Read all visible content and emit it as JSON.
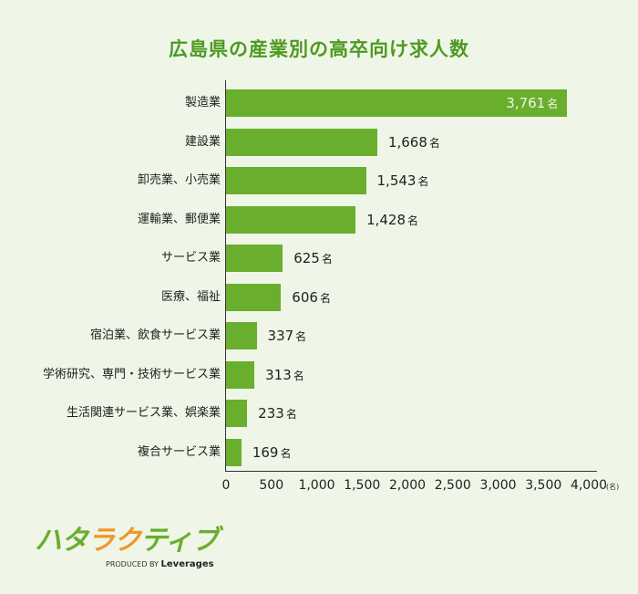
{
  "title": "広島県の産業別の高卒向け求人数",
  "chart_data": {
    "type": "bar",
    "orientation": "horizontal",
    "title": "広島県の産業別の高卒向け求人数",
    "categories": [
      "製造業",
      "建設業",
      "卸売業、小売業",
      "運輸業、郵便業",
      "サービス業",
      "医療、福祉",
      "宿泊業、飲食サービス業",
      "学術研究、専門・技術サービス業",
      "生活関連サービス業、娯楽業",
      "複合サービス業"
    ],
    "values": [
      3761,
      1668,
      1543,
      1428,
      625,
      606,
      337,
      313,
      233,
      169
    ],
    "value_labels": [
      "3,761",
      "1,668",
      "1,543",
      "1,428",
      "625",
      "606",
      "337",
      "313",
      "233",
      "169"
    ],
    "value_unit": "名",
    "xlabel": "(名)",
    "ylabel": "",
    "xlim": [
      0,
      4000
    ],
    "x_ticks": [
      "0",
      "500",
      "1,000",
      "1,500",
      "2,000",
      "2,500",
      "3,000",
      "3,500",
      "4,000"
    ],
    "grid": false,
    "legend": "none",
    "bar_color": "#6aae2e"
  },
  "axis": {
    "unit_label": "(名)"
  },
  "logo": {
    "mark": [
      "ハ",
      "タ",
      "ラ",
      "ク",
      "テ",
      "ィ",
      "ブ"
    ],
    "produced_by": "PRODUCED BY",
    "brand": "Leverages"
  }
}
